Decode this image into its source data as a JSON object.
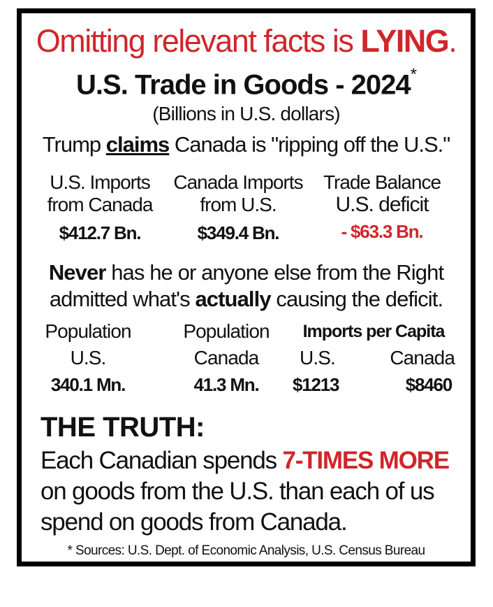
{
  "headline": {
    "prefix": "Omitting relevant facts is ",
    "emphasis": "LYING",
    "suffix": "."
  },
  "title": {
    "text": "U.S. Trade in Goods - 2024",
    "mark": "*"
  },
  "subtitle": "(Billions in U.S. dollars)",
  "claim": {
    "prefix": "Trump ",
    "emphasis": "claims",
    "suffix": " Canada is \"ripping off the U.S.\""
  },
  "trade": [
    {
      "line1": "U.S. Imports",
      "line2": "from Canada",
      "value": "$412.7 Bn."
    },
    {
      "line1": "Canada Imports",
      "line2": "from U.S.",
      "value": "$349.4 Bn."
    },
    {
      "line1": "Trade Balance",
      "line2": "U.S. deficit",
      "value": "- $63.3 Bn."
    }
  ],
  "never": {
    "word1": "Never",
    "part1": " has he or anyone else from the Right",
    "part2": "admitted what's ",
    "word2": "actually",
    "part3": " causing the deficit."
  },
  "population": [
    {
      "label": "Population",
      "sub": "U.S.",
      "value": "340.1 Mn."
    },
    {
      "label": "Population",
      "sub": "Canada",
      "value": "41.3 Mn."
    }
  ],
  "per_capita": {
    "label": "Imports per Capita",
    "us_label": "U.S.",
    "us_value": "$1213",
    "canada_label": "Canada",
    "canada_value": "$8460"
  },
  "truth": {
    "title": "THE TRUTH:",
    "line1_prefix": "Each Canadian spends ",
    "line1_emphasis": "7-TIMES MORE",
    "line2": "on goods from the U.S. than each of us",
    "line3": "spend on goods from Canada."
  },
  "sources": "* Sources: U.S. Dept. of Economic Analysis, U.S. Census Bureau",
  "colors": {
    "accent_red": "#d0262b",
    "border": "#000000"
  }
}
